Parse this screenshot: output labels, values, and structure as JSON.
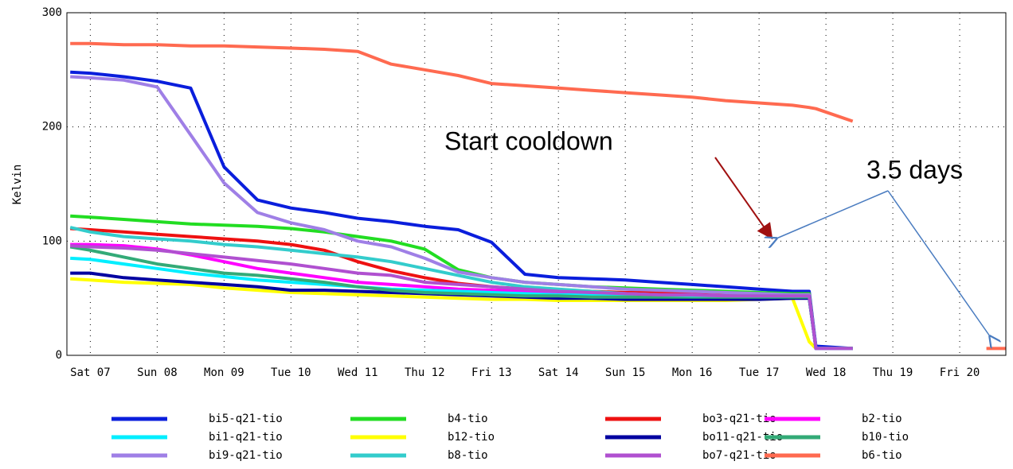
{
  "chart_data": {
    "type": "line",
    "ylabel": "Kelvin",
    "annotations": [
      "Start cooldown",
      "3.5 days"
    ],
    "x": [
      6.7,
      7,
      7.5,
      8,
      8.5,
      9,
      9.5,
      10,
      10.5,
      11,
      11.5,
      12,
      12.5,
      13,
      13.5,
      14,
      14.5,
      15,
      15.5,
      16,
      16.5,
      17,
      17.5,
      17.75,
      17.85,
      18.4,
      19,
      20.4,
      20.69
    ],
    "xlim": [
      6.65,
      20.69
    ],
    "xticks": [
      {
        "value": 7,
        "label": "Sat 07"
      },
      {
        "value": 8,
        "label": "Sun 08"
      },
      {
        "value": 9,
        "label": "Mon 09"
      },
      {
        "value": 10,
        "label": "Tue 10"
      },
      {
        "value": 11,
        "label": "Wed 11"
      },
      {
        "value": 12,
        "label": "Thu 12"
      },
      {
        "value": 13,
        "label": "Fri 13"
      },
      {
        "value": 14,
        "label": "Sat 14"
      },
      {
        "value": 15,
        "label": "Sun 15"
      },
      {
        "value": 16,
        "label": "Mon 16"
      },
      {
        "value": 17,
        "label": "Tue 17"
      },
      {
        "value": 18,
        "label": "Wed 18"
      },
      {
        "value": 19,
        "label": "Thu 19"
      },
      {
        "value": 20,
        "label": "Fri 20"
      }
    ],
    "ylim": [
      0,
      300
    ],
    "yticks": [
      0,
      100,
      200,
      300
    ],
    "grid": true,
    "series": [
      {
        "name": "bi5-q21-tio",
        "color": "#0a1edc",
        "values": [
          248,
          247,
          244,
          240,
          234,
          165,
          136,
          129,
          125,
          120,
          117,
          113,
          110,
          99,
          71,
          68,
          67,
          66,
          64,
          62,
          60,
          58,
          56,
          56,
          8,
          6,
          null,
          null,
          null
        ]
      },
      {
        "name": "b4-tio",
        "color": "#22dd22",
        "values": [
          122,
          121,
          119,
          117,
          115,
          114,
          113,
          111,
          108,
          104,
          100,
          93,
          75,
          68,
          64,
          62,
          60,
          59,
          58,
          57,
          56,
          55,
          54,
          54,
          6,
          6,
          null,
          null,
          null
        ]
      },
      {
        "name": "bo3-q21-tio",
        "color": "#ee1111",
        "values": [
          111,
          110,
          108,
          106,
          104,
          102,
          100,
          97,
          92,
          82,
          74,
          68,
          63,
          60,
          58,
          57,
          56,
          55,
          55,
          54,
          54,
          53,
          53,
          53,
          6,
          6,
          null,
          null,
          null
        ]
      },
      {
        "name": "b2-tio",
        "color": "#ff00ff",
        "values": [
          97,
          97,
          96,
          93,
          88,
          82,
          76,
          72,
          68,
          64,
          62,
          60,
          58,
          57,
          56,
          55,
          54,
          54,
          53,
          53,
          52,
          52,
          52,
          52,
          6,
          6,
          null,
          null,
          null
        ]
      },
      {
        "name": "bi1-q21-tio",
        "color": "#00eeff",
        "values": [
          85,
          84,
          80,
          76,
          72,
          69,
          66,
          64,
          62,
          60,
          58,
          57,
          56,
          55,
          54,
          53,
          53,
          52,
          52,
          52,
          51,
          51,
          51,
          51,
          6,
          6,
          null,
          null,
          null
        ]
      },
      {
        "name": "b12-tio",
        "color": "#ffff00",
        "values": [
          67,
          66,
          64,
          63,
          62,
          59,
          57,
          55,
          54,
          53,
          52,
          51,
          50,
          49,
          49,
          48,
          48,
          48,
          48,
          48,
          48,
          49,
          50,
          12,
          6,
          6,
          null,
          null,
          null
        ]
      },
      {
        "name": "bo11-q21-tio",
        "color": "#0000a0",
        "values": [
          72,
          72,
          68,
          66,
          64,
          62,
          60,
          57,
          57,
          56,
          55,
          54,
          53,
          52,
          51,
          50,
          50,
          49,
          49,
          49,
          49,
          49,
          50,
          50,
          6,
          6,
          null,
          null,
          null
        ]
      },
      {
        "name": "b10-tio",
        "color": "#33aa77",
        "values": [
          95,
          92,
          86,
          80,
          76,
          72,
          70,
          67,
          64,
          60,
          57,
          55,
          54,
          53,
          52,
          52,
          51,
          51,
          51,
          51,
          51,
          51,
          51,
          51,
          6,
          6,
          null,
          null,
          null
        ]
      },
      {
        "name": "bi9-q21-tio",
        "color": "#9f7fe6",
        "values": [
          244,
          243,
          241,
          235,
          193,
          151,
          125,
          116,
          110,
          100,
          95,
          85,
          73,
          68,
          64,
          62,
          60,
          58,
          57,
          56,
          55,
          54,
          53,
          53,
          6,
          6,
          null,
          null,
          null
        ]
      },
      {
        "name": "b8-tio",
        "color": "#33cccc",
        "values": [
          112,
          108,
          104,
          102,
          100,
          97,
          95,
          92,
          89,
          86,
          82,
          76,
          70,
          64,
          60,
          58,
          56,
          54,
          53,
          52,
          52,
          52,
          52,
          52,
          6,
          6,
          null,
          null,
          null
        ]
      },
      {
        "name": "bo7-q21-tio",
        "color": "#b050d0",
        "values": [
          96,
          95,
          94,
          92,
          89,
          86,
          83,
          80,
          76,
          72,
          70,
          64,
          62,
          60,
          58,
          56,
          55,
          54,
          53,
          53,
          52,
          52,
          52,
          52,
          6,
          6,
          null,
          null,
          null
        ]
      },
      {
        "name": "b6-tio",
        "color": "#ff6a50",
        "values": [
          273,
          273,
          272,
          272,
          271,
          271,
          270,
          269,
          268,
          266,
          255,
          250,
          245,
          238,
          236,
          234,
          232,
          230,
          228,
          226,
          223,
          221,
          219,
          217,
          216,
          205,
          null,
          6,
          6
        ]
      }
    ]
  }
}
